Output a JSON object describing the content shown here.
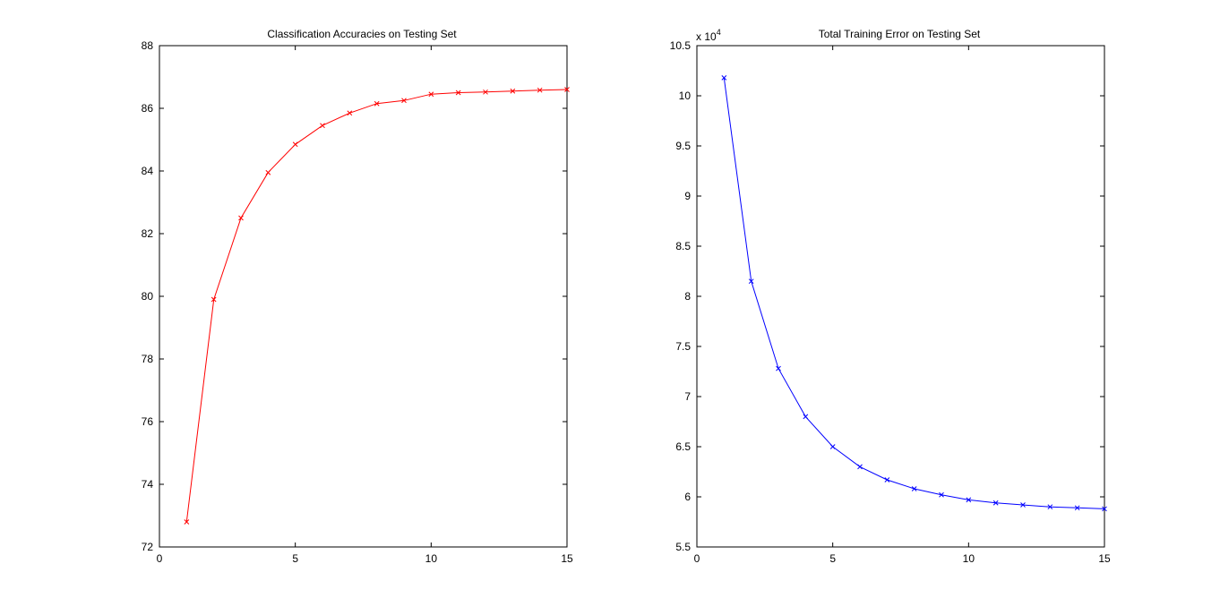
{
  "chart_data": [
    {
      "type": "line",
      "title": "Classification Accuracies on Testing Set",
      "xlabel": "",
      "ylabel": "",
      "xlim": [
        0,
        15
      ],
      "ylim": [
        72,
        88
      ],
      "xticks": [
        0,
        5,
        10,
        15
      ],
      "yticks": [
        72,
        74,
        76,
        78,
        80,
        82,
        84,
        86,
        88
      ],
      "grid": false,
      "marker": "x",
      "color": "#ff0000",
      "series": [
        {
          "x": [
            1,
            2,
            3,
            4,
            5,
            6,
            7,
            8,
            9,
            10,
            11,
            12,
            13,
            14,
            15
          ],
          "values": [
            72.8,
            79.9,
            82.5,
            83.95,
            84.85,
            85.45,
            85.85,
            86.15,
            86.25,
            86.45,
            86.5,
            86.52,
            86.55,
            86.58,
            86.6
          ]
        }
      ]
    },
    {
      "type": "line",
      "title": "Total Training Error on Testing Set",
      "xlabel": "",
      "ylabel": "",
      "xlim": [
        0,
        15
      ],
      "ylim": [
        5.5,
        10.5
      ],
      "xticks": [
        0,
        5,
        10,
        15
      ],
      "yticks": [
        5.5,
        6,
        6.5,
        7,
        7.5,
        8,
        8.5,
        9,
        9.5,
        10,
        10.5
      ],
      "ytick_labels": [
        "5.5",
        "6",
        "6.5",
        "7",
        "7.5",
        "8",
        "8.5",
        "9",
        "9.5",
        "10",
        "10.5"
      ],
      "y_multiplier": "x 10",
      "y_multiplier_exp": "4",
      "grid": false,
      "marker": "x",
      "color": "#0000ff",
      "series": [
        {
          "x": [
            1,
            2,
            3,
            4,
            5,
            6,
            7,
            8,
            9,
            10,
            11,
            12,
            13,
            14,
            15
          ],
          "values": [
            10.18,
            8.15,
            7.28,
            6.8,
            6.5,
            6.3,
            6.17,
            6.08,
            6.02,
            5.97,
            5.94,
            5.92,
            5.9,
            5.89,
            5.88
          ]
        }
      ]
    }
  ]
}
